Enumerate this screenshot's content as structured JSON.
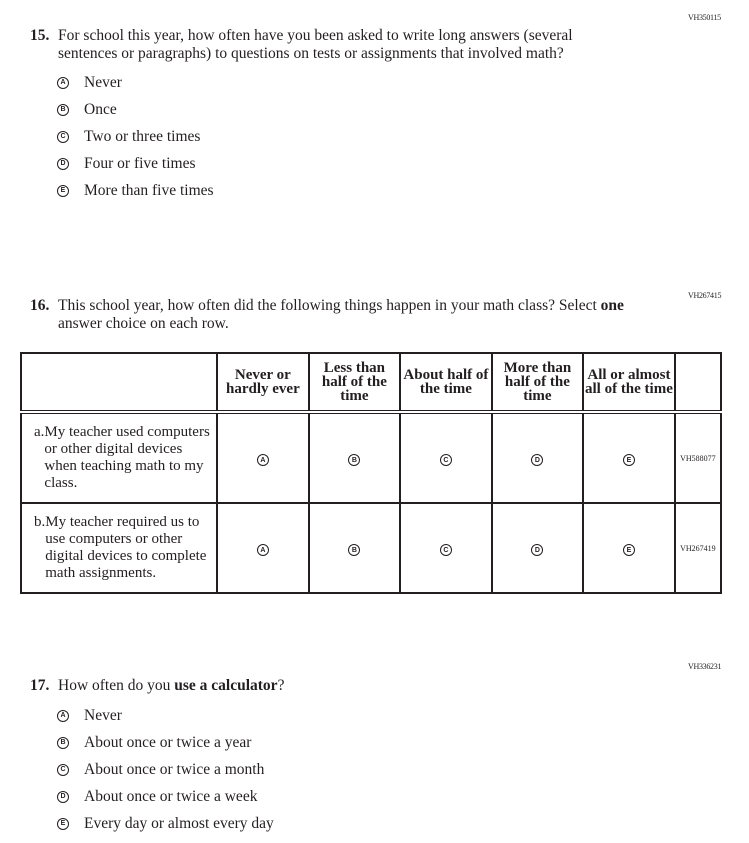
{
  "q15": {
    "id": "VH350115",
    "number": "15.",
    "text": "For school this year, how often have you been asked to write long answers (several sentences or paragraphs) to questions on tests or assignments that involved math?",
    "options": [
      {
        "letter": "A",
        "label": "Never"
      },
      {
        "letter": "B",
        "label": "Once"
      },
      {
        "letter": "C",
        "label": "Two or three times"
      },
      {
        "letter": "D",
        "label": "Four or five times"
      },
      {
        "letter": "E",
        "label": "More than five times"
      }
    ]
  },
  "q16": {
    "id": "VH267415",
    "number": "16.",
    "text_before": "This school year, how often did the following things happen in your math class? Select ",
    "text_bold": "one",
    "text_after": " answer choice on each row.",
    "columns": [
      "Never or hardly ever",
      "Less than half of the time",
      "About half of the time",
      "More than half of the time",
      "All or almost all of the time"
    ],
    "rows": [
      {
        "letter": "a.",
        "label": "My teacher used computers or other digital devices when teaching math to my class.",
        "id": "VH588077"
      },
      {
        "letter": "b.",
        "label": "My teacher required us to use computers or other digital devices to complete math assignments.",
        "id": "VH267419"
      }
    ],
    "letters": [
      "A",
      "B",
      "C",
      "D",
      "E"
    ]
  },
  "q17": {
    "id": "VH336231",
    "number": "17.",
    "text_before": "How often do you ",
    "text_bold": "use a calculator",
    "text_after": "?",
    "options": [
      {
        "letter": "A",
        "label": "Never"
      },
      {
        "letter": "B",
        "label": "About once or twice a year"
      },
      {
        "letter": "C",
        "label": "About once or twice a month"
      },
      {
        "letter": "D",
        "label": "About once or twice a week"
      },
      {
        "letter": "E",
        "label": "Every day or almost every day"
      }
    ]
  }
}
